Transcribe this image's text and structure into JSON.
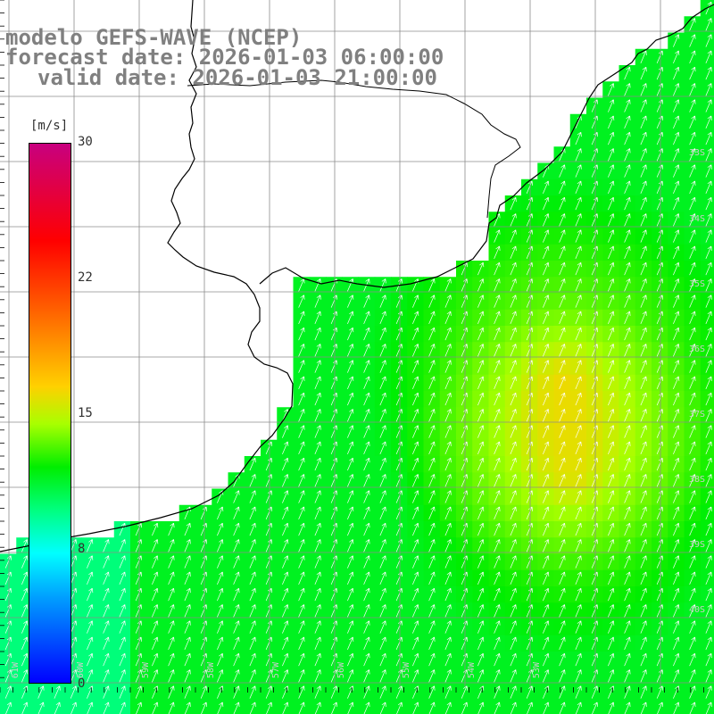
{
  "title": {
    "line1": "modelo GEFS-WAVE (NCEP)",
    "line2": "forecast date: 2026-01-03 06:00:00",
    "line3": "valid date: 2026-01-03 21:00:00"
  },
  "colorbar": {
    "unit": "[m/s]",
    "ticks": [
      "30",
      "22",
      "15",
      "8",
      "0"
    ]
  },
  "grid_labels": {
    "lat": [
      "33S",
      "34S",
      "35S",
      "36S",
      "37S",
      "38S",
      "39S",
      "40S"
    ],
    "lon": [
      "61W",
      "60W",
      "59W",
      "58W",
      "57W",
      "56W",
      "55W",
      "54W",
      "53W"
    ]
  },
  "colors": {
    "land": "#ffffff",
    "coast": "#000000",
    "grid": "#8c8c8c",
    "arrows": "#ffffff",
    "title": "#808080"
  }
}
